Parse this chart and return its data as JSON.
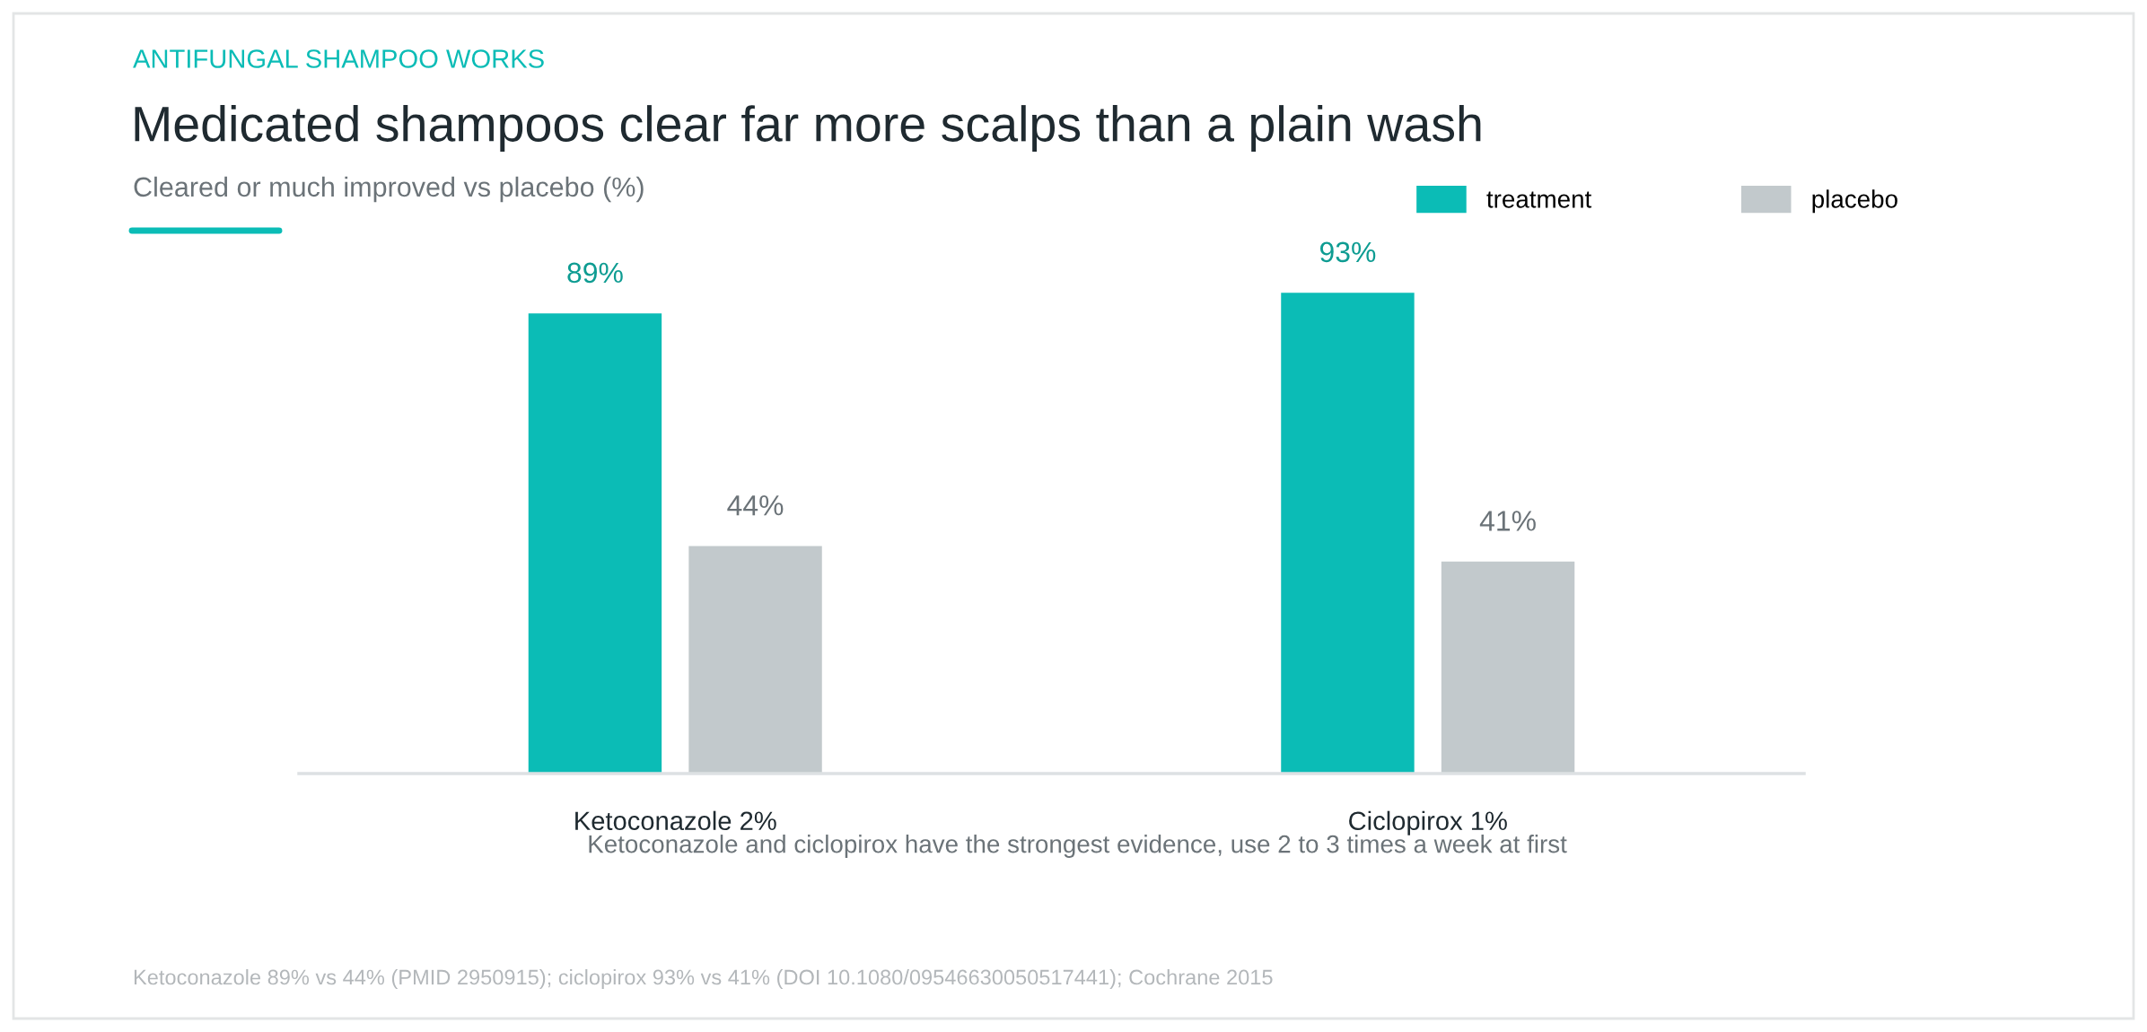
{
  "chart_data": {
    "type": "bar",
    "title": "Medicated shampoos clear far more scalps than a plain wash",
    "subtitle": "Cleared or much improved vs placebo (%)",
    "categories": [
      "Ketoconazole 2%",
      "Ciclopirox 1%"
    ],
    "series": [
      {
        "name": "treatment",
        "color": "#0bbcb6",
        "values": [
          89,
          93
        ],
        "value_labels": [
          "89%",
          "93%"
        ]
      },
      {
        "name": "placebo",
        "color": "#c2c9cc",
        "values": [
          44,
          41
        ],
        "value_labels": [
          "44%",
          "41%"
        ]
      }
    ],
    "legend": "top right",
    "grid": false,
    "annotations": [
      "ANTIFUNGAL SHAMPOO WORKS",
      "Ketoconazole and ciclopirox have the strongest evidence, use 2 to 3 times a week at first",
      "Ketoconazole 89% vs 44% (PMID 2950915); ciclopirox 93% vs 41% (DOI 10.1080/09546630050517441); Cochrane 2015"
    ]
  }
}
